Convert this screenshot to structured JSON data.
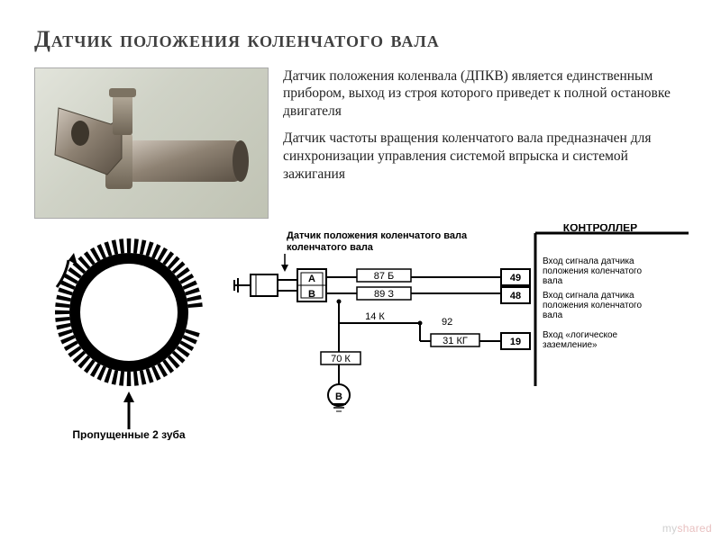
{
  "title": "Датчик положения коленчатого вала",
  "paragraphs": {
    "p1": "Датчик положения коленвала (ДПКВ) является единственным прибором, выход из строя которого приведет к полной остановке двигателя",
    "p2": "Датчик частоты вращения коленчатого вала предназначен для синхронизации управления системой впрыска и системой зажигания"
  },
  "ring": {
    "caption": "Пропущенные 2 зуба",
    "teeth_count": 58,
    "tooth_color": "#000000",
    "outer_r": 82,
    "inner_r": 66,
    "arrow_color": "#000000"
  },
  "schematic": {
    "label_sensor": "Датчик положения коленчатого вала",
    "label_controller": "КОНТРОЛЛЕР",
    "pin_a": "A",
    "pin_b": "B",
    "wire_ab": "87 Б",
    "wire_bb": "89 З",
    "wire_14k": "14 К",
    "wire_92": "92",
    "wire_31kg": "31 КГ",
    "wire_70k": "70 К",
    "ground": "B",
    "out49": "49",
    "out48": "48",
    "out19": "19",
    "note49": "Вход сигнала датчика положения коленчатого вала",
    "note48": "Вход сигнала датчика положения коленчатого вала",
    "note19": "Вход «логическое заземление»",
    "line_color": "#000000",
    "box_stroke": "#000000",
    "font_size": 11
  },
  "watermark": "myshared",
  "title_color": "#404040",
  "body_text_color": "#222222"
}
